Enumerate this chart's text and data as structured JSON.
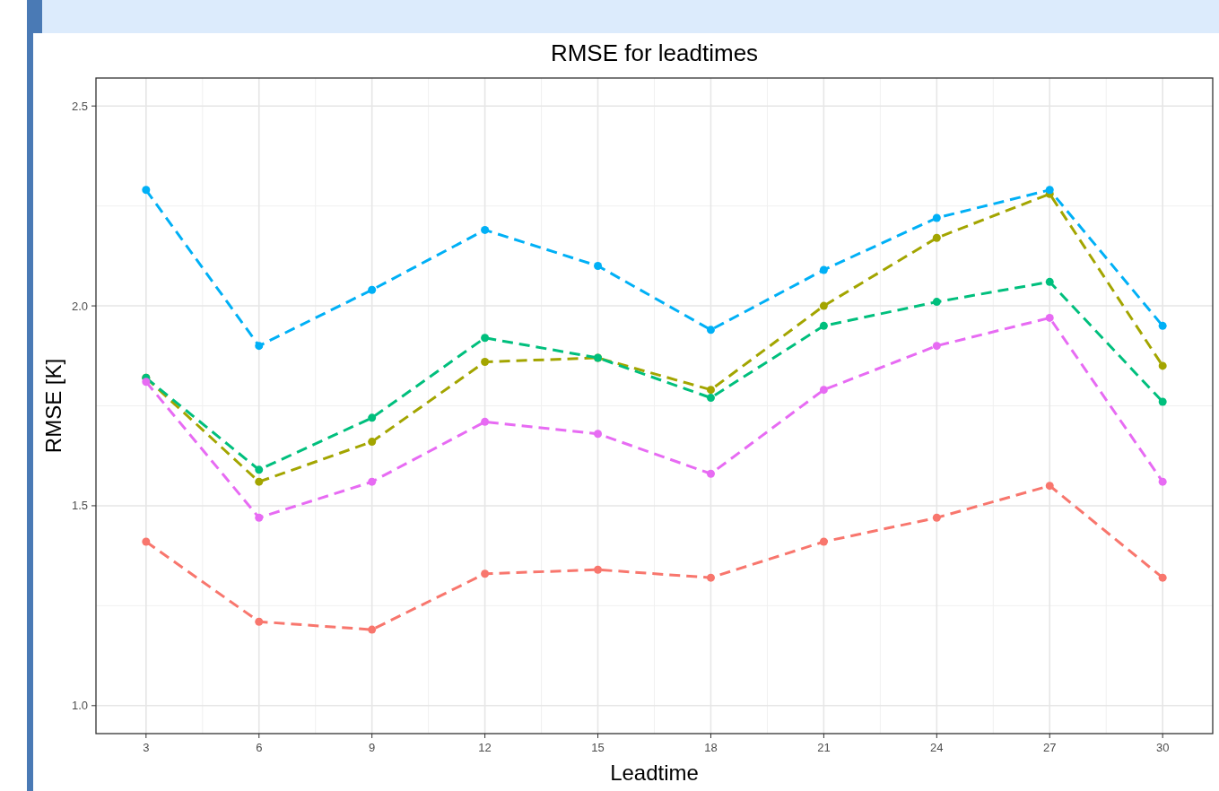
{
  "chart_data": {
    "type": "line",
    "title": "RMSE for leadtimes",
    "xlabel": "Leadtime",
    "ylabel": "RMSE [K]",
    "x": [
      3,
      6,
      9,
      12,
      15,
      18,
      21,
      24,
      27,
      30
    ],
    "xlim": [
      1.67,
      31.33
    ],
    "xticks": [
      3,
      6,
      9,
      12,
      15,
      18,
      21,
      24,
      27,
      30
    ],
    "ylim": [
      0.93,
      2.57
    ],
    "yticks": [
      {
        "value": 1,
        "label": "1.0"
      },
      {
        "value": 1.5,
        "label": "1.5"
      },
      {
        "value": 2,
        "label": "2.0"
      },
      {
        "value": 2.5,
        "label": "2.5"
      }
    ],
    "grid": true,
    "marker": "circle",
    "line_style": "dashed",
    "series": [
      {
        "color": "#f8766d",
        "values": [
          1.41,
          1.21,
          1.19,
          1.33,
          1.34,
          1.32,
          1.41,
          1.47,
          1.55,
          1.32
        ]
      },
      {
        "color": "#a3a500",
        "values": [
          1.82,
          1.56,
          1.66,
          1.86,
          1.87,
          1.79,
          2.0,
          2.17,
          2.28,
          1.85
        ]
      },
      {
        "color": "#00bf7d",
        "values": [
          1.82,
          1.59,
          1.72,
          1.92,
          1.87,
          1.77,
          1.95,
          2.01,
          2.06,
          1.76
        ]
      },
      {
        "color": "#00b0f6",
        "values": [
          2.29,
          1.9,
          2.04,
          2.19,
          2.1,
          1.94,
          2.09,
          2.22,
          2.29,
          1.95
        ]
      },
      {
        "color": "#e76bf3",
        "values": [
          1.81,
          1.47,
          1.56,
          1.71,
          1.68,
          1.58,
          1.79,
          1.9,
          1.97,
          1.56
        ]
      }
    ]
  }
}
